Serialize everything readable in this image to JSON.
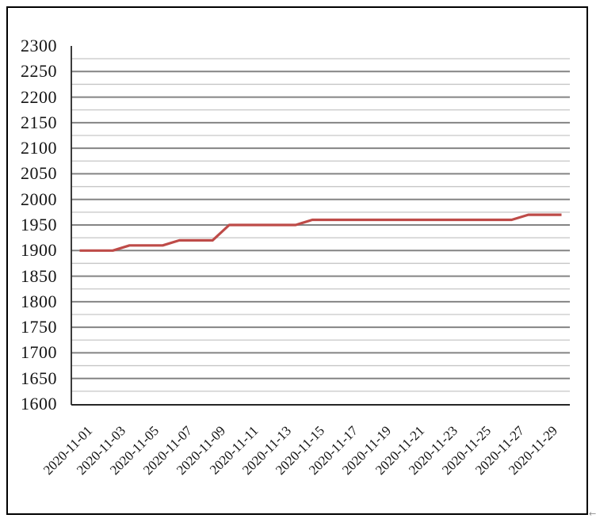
{
  "page": {
    "background": "#ffffff",
    "frame_border_color": "#000000",
    "end_of_line_mark": "←"
  },
  "chart_data": {
    "type": "line",
    "title": "",
    "legend": "none",
    "grid": true,
    "x": [
      "2020-11-01",
      "2020-11-02",
      "2020-11-03",
      "2020-11-04",
      "2020-11-05",
      "2020-11-06",
      "2020-11-07",
      "2020-11-08",
      "2020-11-09",
      "2020-11-10",
      "2020-11-11",
      "2020-11-12",
      "2020-11-13",
      "2020-11-14",
      "2020-11-15",
      "2020-11-16",
      "2020-11-17",
      "2020-11-18",
      "2020-11-19",
      "2020-11-20",
      "2020-11-21",
      "2020-11-22",
      "2020-11-23",
      "2020-11-24",
      "2020-11-25",
      "2020-11-26",
      "2020-11-27",
      "2020-11-28",
      "2020-11-29",
      "2020-11-30"
    ],
    "series": [
      {
        "name": "",
        "values": [
          1900,
          1900,
          1900,
          1910,
          1910,
          1910,
          1920,
          1920,
          1920,
          1950,
          1950,
          1950,
          1950,
          1950,
          1960,
          1960,
          1960,
          1960,
          1960,
          1960,
          1960,
          1960,
          1960,
          1960,
          1960,
          1960,
          1960,
          1970,
          1970,
          1970
        ]
      }
    ],
    "xlabel": "",
    "ylabel": "",
    "ylim": [
      1600,
      2300
    ],
    "y_major_step": 50,
    "y_minor_step": 25,
    "y_tick_labels": [
      "2300",
      "2250",
      "2200",
      "2150",
      "2100",
      "2050",
      "2000",
      "1950",
      "1900",
      "1850",
      "1800",
      "1750",
      "1700",
      "1650",
      "1600"
    ],
    "x_tick_labels": [
      "2020-11-01",
      "2020-11-03",
      "2020-11-05",
      "2020-11-07",
      "2020-11-09",
      "2020-11-11",
      "2020-11-13",
      "2020-11-15",
      "2020-11-17",
      "2020-11-19",
      "2020-11-21",
      "2020-11-23",
      "2020-11-25",
      "2020-11-27",
      "2020-11-29"
    ],
    "line_color": "#BE4B48",
    "major_grid_color": "#848484",
    "minor_grid_color": "#C6C6C6",
    "axis_color": "#262626"
  }
}
